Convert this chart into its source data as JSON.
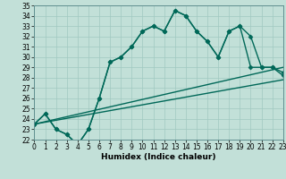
{
  "xlabel": "Humidex (Indice chaleur)",
  "xlim": [
    0,
    23
  ],
  "ylim": [
    22,
    35
  ],
  "xticks": [
    0,
    1,
    2,
    3,
    4,
    5,
    6,
    7,
    8,
    9,
    10,
    11,
    12,
    13,
    14,
    15,
    16,
    17,
    18,
    19,
    20,
    21,
    22,
    23
  ],
  "yticks": [
    22,
    23,
    24,
    25,
    26,
    27,
    28,
    29,
    30,
    31,
    32,
    33,
    34,
    35
  ],
  "bg_color": "#c2e0d8",
  "grid_color": "#a0c8c0",
  "line_color": "#006858",
  "line1_x": [
    0,
    1,
    2,
    3,
    4,
    5,
    6,
    7,
    8,
    9,
    10,
    11,
    12,
    13,
    14,
    15,
    16,
    17,
    18,
    19,
    20,
    21,
    22,
    23
  ],
  "line1_y": [
    23.5,
    24.5,
    23.0,
    22.5,
    21.5,
    23.0,
    26.0,
    29.5,
    30.0,
    31.0,
    32.5,
    33.0,
    32.5,
    34.5,
    34.0,
    32.5,
    31.5,
    30.0,
    32.5,
    33.0,
    32.0,
    29.0,
    29.0,
    28.5
  ],
  "line2_x": [
    0,
    1,
    2,
    3,
    4,
    5,
    6,
    7,
    8,
    9,
    10,
    11,
    12,
    13,
    14,
    15,
    16,
    17,
    18,
    19,
    20,
    21,
    22,
    23
  ],
  "line2_y": [
    23.5,
    24.5,
    23.0,
    22.5,
    21.5,
    23.0,
    26.0,
    29.5,
    30.0,
    31.0,
    32.5,
    33.0,
    32.5,
    34.5,
    34.0,
    32.5,
    31.5,
    30.0,
    32.5,
    33.0,
    29.0,
    29.0,
    29.0,
    28.2
  ],
  "line3_x": [
    0,
    23
  ],
  "line3_y": [
    23.5,
    29.0
  ],
  "line4_x": [
    0,
    23
  ],
  "line4_y": [
    23.5,
    27.8
  ],
  "marker": "D",
  "markersize": 2.5,
  "linewidth": 1.0,
  "tick_fontsize": 5.5,
  "label_fontsize": 6.5
}
